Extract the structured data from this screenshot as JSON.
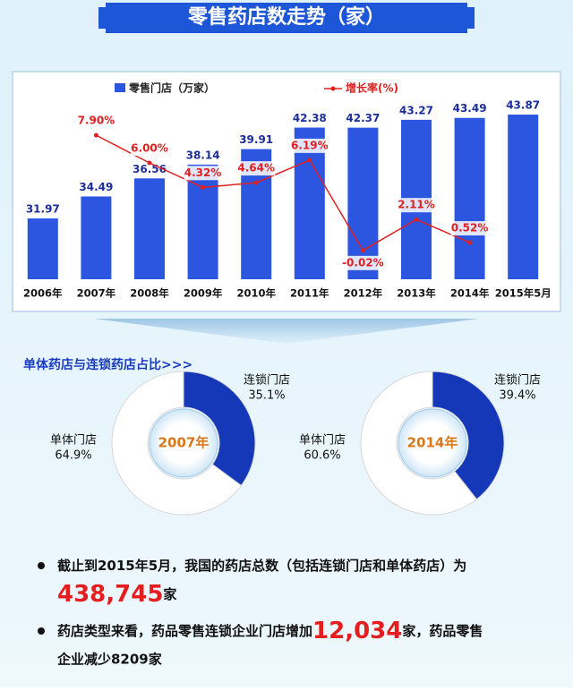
{
  "title": "零售药店数走势（家）",
  "chart_data": [
    {
      "type": "bar",
      "categories": [
        "2006年",
        "2007年",
        "2008年",
        "2009年",
        "2010年",
        "2011年",
        "2012年",
        "2013年",
        "2014年",
        "2015年5月"
      ],
      "series": [
        {
          "name": "零售门店（万家）",
          "color": "#2d56e0",
          "values": [
            31.97,
            34.49,
            36.56,
            38.14,
            39.91,
            42.38,
            42.37,
            43.27,
            43.49,
            43.87
          ]
        },
        {
          "name": "增长率(%)",
          "color": "#e02020",
          "axis": "y2",
          "type": "line",
          "values": [
            null,
            7.9,
            6.0,
            4.32,
            4.64,
            6.19,
            -0.02,
            2.11,
            0.52,
            null
          ],
          "value_labels": [
            null,
            "7.90%",
            "6.00%",
            "4.32%",
            "4.64%",
            "6.19%",
            "-0.02%",
            "2.11%",
            "0.52%",
            null
          ]
        }
      ],
      "ylim": [
        25,
        45
      ],
      "y2lim": [
        -2,
        10
      ]
    },
    {
      "type": "pie",
      "title": "单体药店与连锁药店占比>>>",
      "center_label": "2007年",
      "categories": [
        "连锁门店",
        "单体门店"
      ],
      "values": [
        35.1,
        64.9
      ],
      "value_labels": [
        "35.1%",
        "64.9%"
      ],
      "colors": [
        "#1438b8",
        "#ffffff"
      ]
    },
    {
      "type": "pie",
      "center_label": "2014年",
      "categories": [
        "连锁门店",
        "单体门店"
      ],
      "values": [
        39.4,
        60.6
      ],
      "value_labels": [
        "39.4%",
        "60.6%"
      ],
      "colors": [
        "#1438b8",
        "#ffffff"
      ]
    }
  ],
  "bullets": [
    {
      "text": "截止到2015年5月，我国的药店总数（包括连锁门店和单体药店）为",
      "highlight": "438,745",
      "after": "家"
    },
    {
      "text": "药店类型来看，药品零售连锁企业门店增加",
      "highlight": "12,034",
      "after": "家，药品零售",
      "tail": "企业减少8209家"
    }
  ]
}
